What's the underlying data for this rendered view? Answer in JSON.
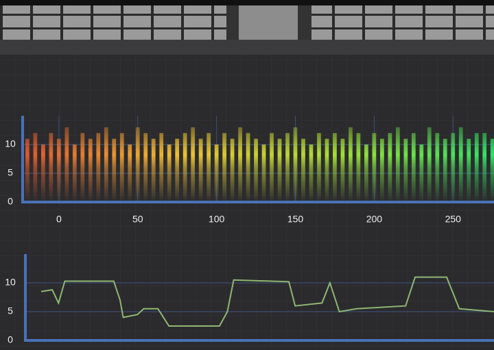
{
  "chart_data": [
    {
      "type": "bar",
      "x": [
        -20,
        -15,
        -10,
        -5,
        0,
        5,
        10,
        15,
        20,
        25,
        30,
        35,
        40,
        45,
        50,
        55,
        60,
        65,
        70,
        75,
        80,
        85,
        90,
        95,
        100,
        105,
        110,
        115,
        120,
        125,
        130,
        135,
        140,
        145,
        150,
        155,
        160,
        165,
        170,
        175,
        180,
        185,
        190,
        195,
        200,
        205,
        210,
        215,
        220,
        225,
        230,
        235,
        240,
        245,
        250,
        255,
        260,
        265,
        270,
        275
      ],
      "values": [
        11,
        12,
        10,
        12,
        11,
        13,
        10,
        12,
        11,
        12,
        13,
        11,
        12,
        10,
        13,
        12,
        11,
        12,
        10,
        11,
        12,
        13,
        11,
        12,
        10,
        12,
        11,
        13,
        12,
        11,
        10,
        12,
        11,
        12,
        13,
        11,
        10,
        12,
        11,
        12,
        11,
        13,
        12,
        10,
        12,
        11,
        12,
        13,
        11,
        12,
        10,
        13,
        12,
        11,
        12,
        13,
        11,
        12,
        12,
        11
      ],
      "colors": [
        "#e4552c",
        "#f2c232",
        "#a6e232",
        "#2ee466"
      ],
      "xlim": [
        -23,
        276
      ],
      "ylim": [
        0,
        15
      ],
      "xticks": [
        0,
        50,
        100,
        150,
        200,
        250
      ],
      "yticks": [
        0,
        5,
        10
      ],
      "grid": true
    },
    {
      "type": "line",
      "x": [
        -11,
        -4,
        0,
        4,
        35,
        39,
        41,
        50,
        54,
        63,
        70,
        102,
        107,
        111,
        146,
        150,
        167,
        172,
        178,
        189,
        220,
        226,
        246,
        254,
        276
      ],
      "values": [
        8.5,
        8.8,
        6.5,
        10.3,
        10.3,
        7,
        4,
        4.5,
        5.5,
        5.5,
        2.5,
        2.5,
        5,
        10.5,
        10.2,
        6,
        6.5,
        10,
        5,
        5.5,
        6,
        11,
        11,
        5.5,
        5
      ],
      "color": "#8fb870",
      "xlim": [
        -21,
        276
      ],
      "ylim": [
        0,
        15
      ],
      "yticks": [
        0,
        5,
        10
      ],
      "grid": true
    }
  ]
}
